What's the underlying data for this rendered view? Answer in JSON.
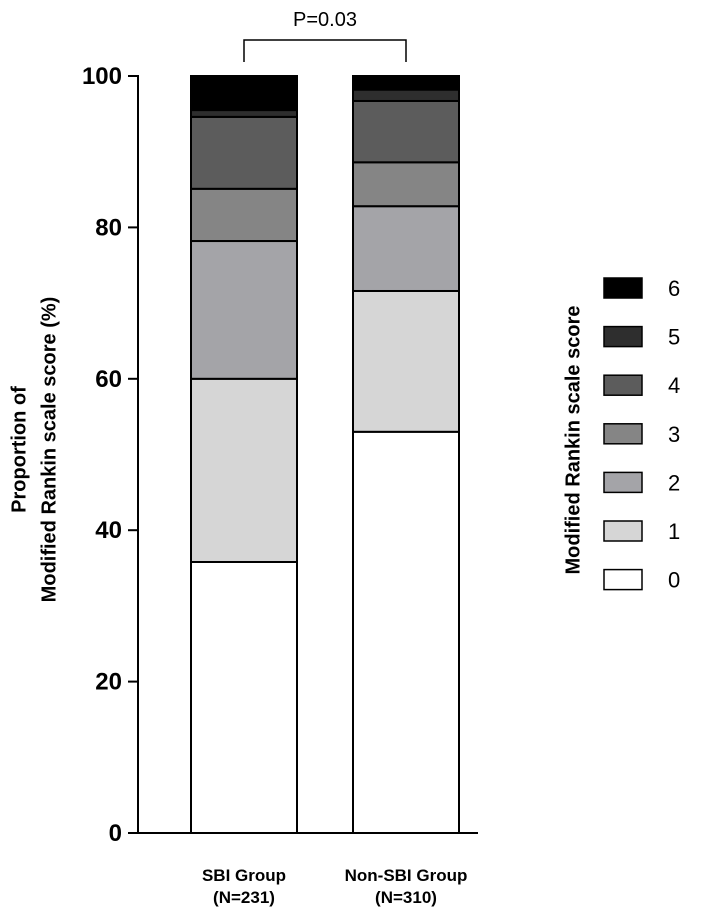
{
  "chart_data": {
    "type": "bar",
    "stacked": true,
    "categories": [
      [
        "SBI Group",
        "(N=231)"
      ],
      [
        "Non-SBI Group",
        "(N=310)"
      ]
    ],
    "series": [
      {
        "name": "0",
        "values": [
          35.8,
          53.0
        ],
        "color": "#ffffff"
      },
      {
        "name": "1",
        "values": [
          24.2,
          18.6
        ],
        "color": "#d6d6d6"
      },
      {
        "name": "2",
        "values": [
          18.2,
          11.2
        ],
        "color": "#a4a4a8"
      },
      {
        "name": "3",
        "values": [
          6.9,
          5.8
        ],
        "color": "#858585"
      },
      {
        "name": "4",
        "values": [
          9.5,
          8.1
        ],
        "color": "#5c5c5c"
      },
      {
        "name": "5",
        "values": [
          0.9,
          1.5
        ],
        "color": "#2e2e2e"
      },
      {
        "name": "6",
        "values": [
          4.5,
          1.8
        ],
        "color": "#000000"
      }
    ],
    "ylabel": [
      "Proportion of",
      "Modified Rankin scale score (%)"
    ],
    "ylim": [
      0,
      100
    ],
    "yticks": [
      0,
      20,
      40,
      60,
      80,
      100
    ],
    "legend": {
      "title": "Modified Rankin scale score",
      "placement": "right",
      "order": [
        "6",
        "5",
        "4",
        "3",
        "2",
        "1",
        "0"
      ]
    },
    "annotation": {
      "text": "P=0.03",
      "between": [
        0,
        1
      ]
    },
    "grid": false
  }
}
